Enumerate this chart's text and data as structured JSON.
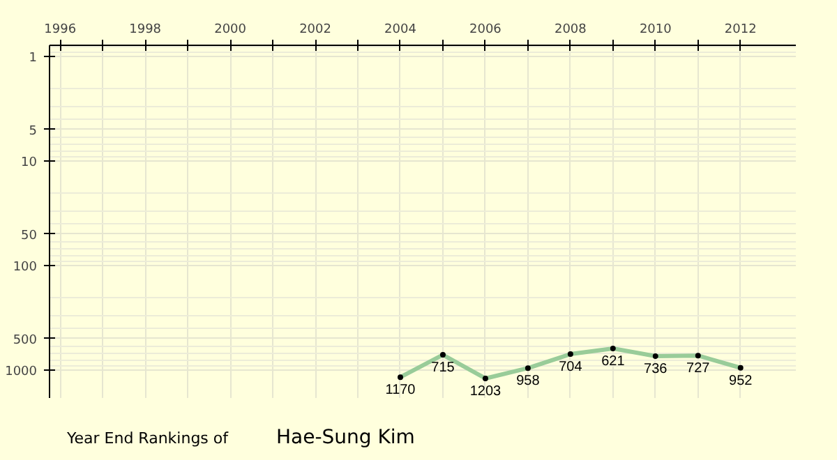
{
  "chart_data": {
    "type": "line",
    "title": "Year End Rankings of",
    "subtitle": "Hae-Sung Kim",
    "x": [
      2004,
      2005,
      2006,
      2007,
      2008,
      2009,
      2010,
      2011,
      2012
    ],
    "values": [
      1170,
      715,
      1203,
      958,
      704,
      621,
      736,
      727,
      952
    ],
    "color": "#99cc99",
    "marker": "circle",
    "data_labels": true,
    "grid": true,
    "log": "y",
    "xlim": [
      1995.75,
      2013.3
    ],
    "ylim": [
      1850,
      0.78
    ],
    "xticks": [
      1996,
      {
        "value": 1997,
        "label": null
      },
      1998,
      {
        "value": 1999,
        "label": null
      },
      2000,
      {
        "value": 2001,
        "label": null
      },
      2002,
      {
        "value": 2003,
        "label": null
      },
      2004,
      {
        "value": 2005,
        "label": null
      },
      2006,
      {
        "value": 2007,
        "label": null
      },
      2008,
      {
        "value": 2009,
        "label": null
      },
      2010,
      {
        "value": 2011,
        "label": null
      },
      2012
    ],
    "yticks": [
      1,
      5,
      10,
      50,
      100,
      500,
      1000
    ]
  }
}
